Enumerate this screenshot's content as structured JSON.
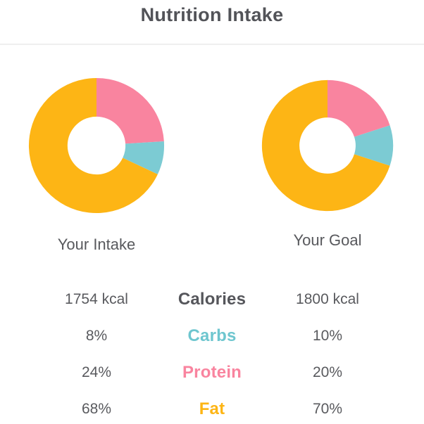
{
  "page": {
    "title": "Nutrition Intake"
  },
  "colors": {
    "carbs": "#6EC6CF",
    "protein": "#F9849F",
    "fat": "#FDB515",
    "text_gray": "#595A5E",
    "title_gray": "#525358",
    "divider": "#EFEFEF"
  },
  "chart_data": [
    {
      "type": "pie",
      "donut": true,
      "title": "Your Intake",
      "start_angle": "top",
      "direction": "clockwise",
      "unit": "%",
      "segments": [
        {
          "label": "Protein",
          "value": 24,
          "color": "#F9849F"
        },
        {
          "label": "Carbs",
          "value": 8,
          "color": "#7CCBD3"
        },
        {
          "label": "Fat",
          "value": 68,
          "color": "#FDB515"
        }
      ],
      "calories": "1754 kcal"
    },
    {
      "type": "pie",
      "donut": true,
      "title": "Your Goal",
      "start_angle": "top",
      "direction": "clockwise",
      "unit": "%",
      "segments": [
        {
          "label": "Protein",
          "value": 20,
          "color": "#F9849F"
        },
        {
          "label": "Carbs",
          "value": 10,
          "color": "#7CCBD3"
        },
        {
          "label": "Fat",
          "value": 70,
          "color": "#FDB515"
        }
      ],
      "calories": "1800 kcal"
    }
  ],
  "comparison": {
    "rows": [
      {
        "intake": "1754 kcal",
        "label": "Calories",
        "goal": "1800 kcal",
        "label_color": "#55565B"
      },
      {
        "intake": "8%",
        "label": "Carbs",
        "goal": "10%",
        "label_color": "#6EC6CF"
      },
      {
        "intake": "24%",
        "label": "Protein",
        "goal": "20%",
        "label_color": "#F9849F"
      },
      {
        "intake": "68%",
        "label": "Fat",
        "goal": "70%",
        "label_color": "#FDB515"
      }
    ]
  }
}
